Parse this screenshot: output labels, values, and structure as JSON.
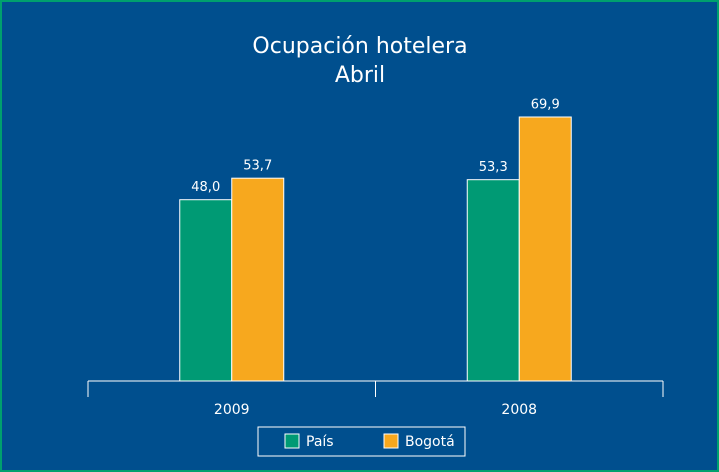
{
  "chart_data": {
    "type": "bar",
    "title": "Ocupación hotelera",
    "subtitle": "Abril",
    "categories": [
      "2009",
      "2008"
    ],
    "series": [
      {
        "name": "País",
        "color": "#009a74",
        "values": [
          48.0,
          53.3
        ],
        "value_labels": [
          "48,0",
          "53,3"
        ]
      },
      {
        "name": "Bogotá",
        "color": "#f7a81e",
        "values": [
          53.7,
          69.9
        ],
        "value_labels": [
          "53,7",
          "69,9"
        ]
      }
    ],
    "legend": "bottom"
  }
}
